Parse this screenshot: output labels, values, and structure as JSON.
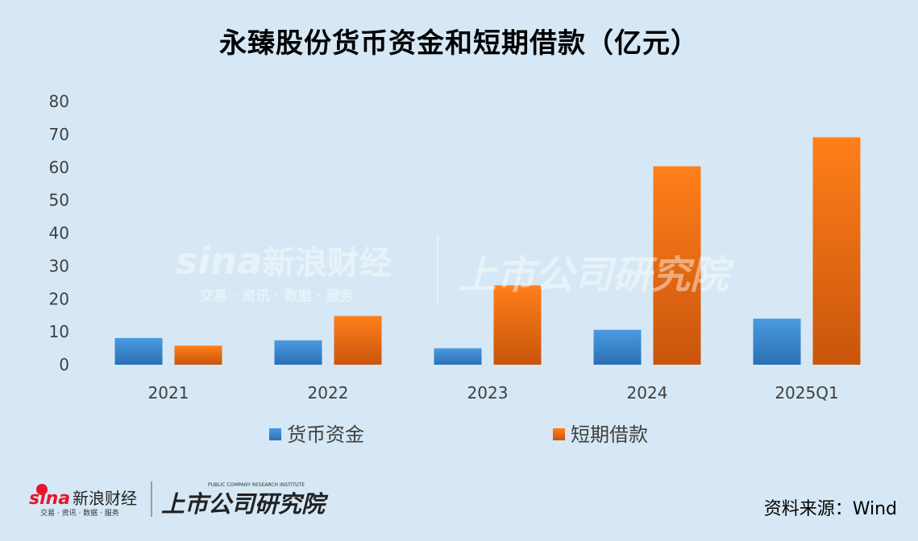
{
  "chart_data": {
    "type": "bar",
    "title": "永臻股份货币资金和短期借款（亿元）",
    "categories": [
      "2021",
      "2022",
      "2023",
      "2024",
      "2025Q1"
    ],
    "series": [
      {
        "name": "货币资金",
        "values": [
          8.1,
          7.4,
          5.0,
          10.6,
          14.0
        ],
        "color": "#3a86d0"
      },
      {
        "name": "短期借款",
        "values": [
          5.8,
          14.8,
          24.1,
          60.3,
          69.1
        ],
        "color": "#f07a18"
      }
    ],
    "ylim": [
      0,
      80
    ],
    "yticks": [
      0,
      10,
      20,
      30,
      40,
      50,
      60,
      70,
      80
    ],
    "grid": false,
    "legend_position": "bottom"
  },
  "watermark": {
    "brand": "sina",
    "brand_cn": "新浪财经",
    "sub": "交易 · 资讯 · 数据 · 服务",
    "institute_cn": "上市公司研究院"
  },
  "footer": {
    "brand": "sina",
    "brand_cn": "新浪财经",
    "sub": "交易 · 资讯 · 数据 · 服务",
    "institute_en": "PUBLIC COMPANY RESEARCH INSTITUTE",
    "institute_cn": "上市公司研究院",
    "source": "资料来源：Wind"
  }
}
